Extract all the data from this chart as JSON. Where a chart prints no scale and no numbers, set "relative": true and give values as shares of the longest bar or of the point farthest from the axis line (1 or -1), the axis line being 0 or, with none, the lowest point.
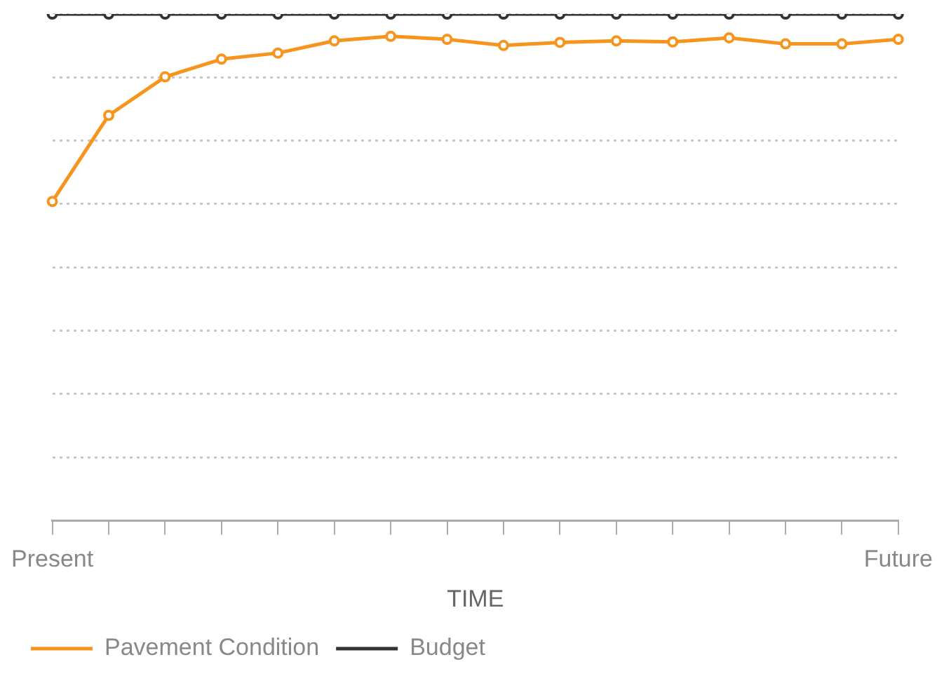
{
  "chart_data": {
    "type": "line",
    "relative": true,
    "xlabel": "TIME",
    "categories": [
      "Present",
      null,
      null,
      null,
      null,
      null,
      null,
      null,
      null,
      null,
      null,
      null,
      null,
      null,
      null,
      "Future"
    ],
    "series": [
      {
        "name": "Pavement Condition",
        "color": "#f7941d",
        "values": [
          0.63,
          0.8,
          0.876,
          0.911,
          0.923,
          0.947,
          0.956,
          0.95,
          0.938,
          0.944,
          0.947,
          0.945,
          0.953,
          0.941,
          0.941,
          0.95
        ]
      },
      {
        "name": "Budget",
        "color": "#333333",
        "values": [
          1,
          1,
          1,
          1,
          1,
          1,
          1,
          1,
          1,
          1,
          1,
          1,
          1,
          1,
          1,
          1
        ]
      }
    ],
    "grid": "y",
    "legend": "bottom",
    "marker": "circle",
    "line_style": "solid"
  }
}
